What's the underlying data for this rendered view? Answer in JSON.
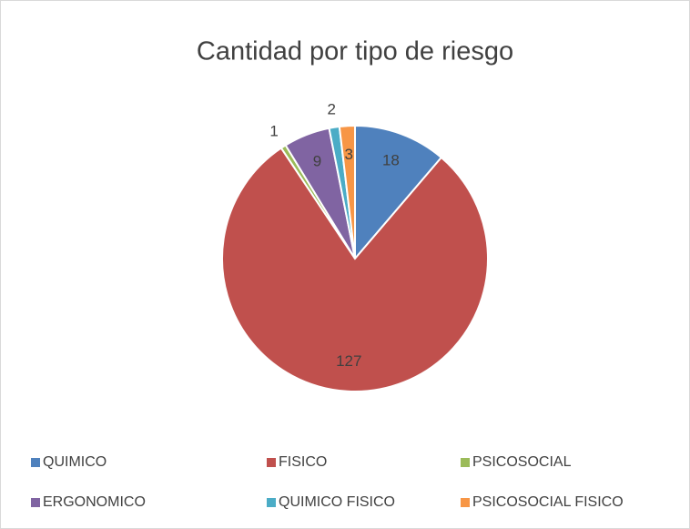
{
  "chart_data": {
    "type": "pie",
    "title": "Cantidad por tipo de riesgo",
    "categories": [
      "QUIMICO",
      "FISICO",
      "PSICOSOCIAL",
      "ERGONOMICO",
      "QUIMICO FISICO",
      "PSICOSOCIAL FISICO"
    ],
    "values": [
      18,
      127,
      1,
      9,
      2,
      3
    ],
    "colors": [
      "#4f81bd",
      "#c0504d",
      "#9bbb59",
      "#8064a2",
      "#4bacc6",
      "#f79646"
    ],
    "legend": "bottom"
  }
}
